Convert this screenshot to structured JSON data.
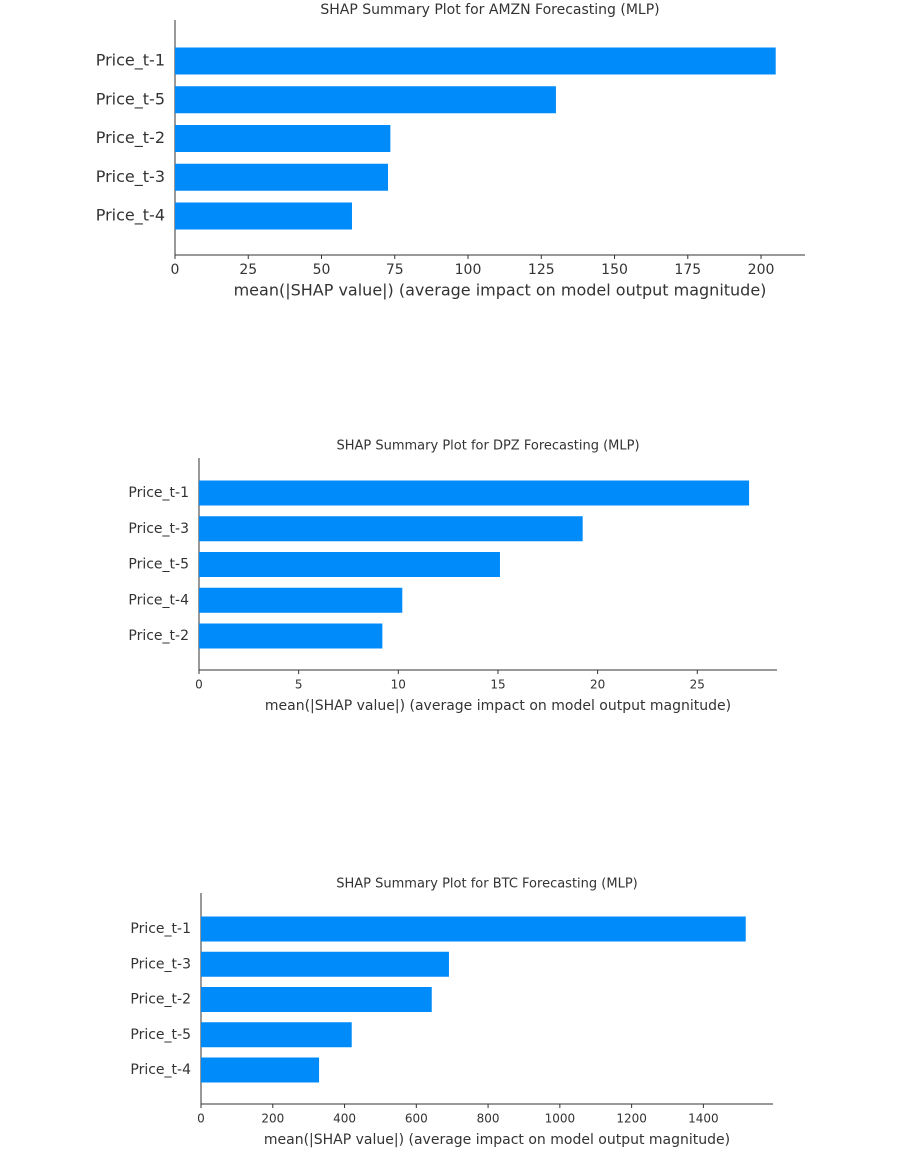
{
  "chart_data": [
    {
      "type": "bar",
      "title": "SHAP Summary Plot for AMZN Forecasting (MLP)",
      "categories": [
        "Price_t-1",
        "Price_t-5",
        "Price_t-2",
        "Price_t-3",
        "Price_t-4"
      ],
      "values": [
        205,
        130,
        73.5,
        72.7,
        60.4
      ],
      "color": "#008bfb",
      "x_label": "mean(|SHAP value|) (average impact on model output magnitude)",
      "xlim": [
        0,
        215
      ],
      "xticks": [
        0,
        25,
        50,
        75,
        100,
        125,
        150,
        175,
        200
      ]
    },
    {
      "type": "bar",
      "title": "SHAP Summary Plot for DPZ Forecasting (MLP)",
      "categories": [
        "Price_t-1",
        "Price_t-3",
        "Price_t-5",
        "Price_t-4",
        "Price_t-2"
      ],
      "values": [
        27.6,
        19.25,
        15.1,
        10.2,
        9.2
      ],
      "color": "#008bfb",
      "x_label": "mean(|SHAP value|) (average impact on model output magnitude)",
      "xlim": [
        0,
        29
      ],
      "xticks": [
        0,
        5,
        10,
        15,
        20,
        25
      ]
    },
    {
      "type": "bar",
      "title": "SHAP Summary Plot for BTC Forecasting (MLP)",
      "categories": [
        "Price_t-1",
        "Price_t-3",
        "Price_t-2",
        "Price_t-5",
        "Price_t-4"
      ],
      "values": [
        1518,
        691,
        643,
        420,
        329
      ],
      "color": "#008bfb",
      "x_label": "mean(|SHAP value|) (average impact on model output magnitude)",
      "xlim": [
        0,
        1594
      ],
      "xticks": [
        0,
        200,
        400,
        600,
        800,
        1000,
        1200,
        1400
      ]
    }
  ]
}
